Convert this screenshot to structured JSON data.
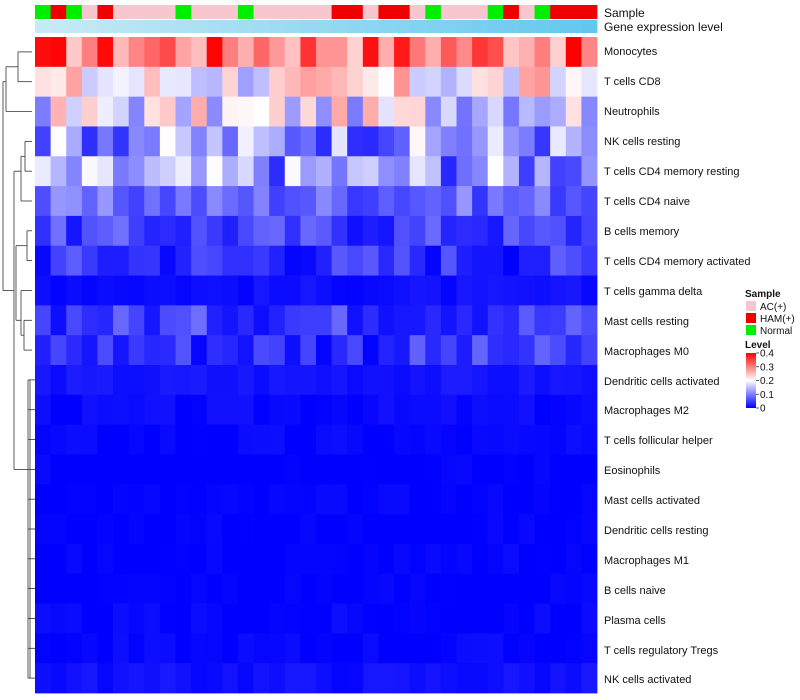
{
  "chart_data": {
    "type": "heatmap",
    "annotation_tracks": [
      {
        "label": "Sample"
      },
      {
        "label": "Gene expression level"
      }
    ],
    "sample_groups": [
      "Normal",
      "HAM(+)",
      "Normal",
      "AC(+)",
      "HAM(+)",
      "AC(+)",
      "AC(+)",
      "AC(+)",
      "AC(+)",
      "Normal",
      "AC(+)",
      "AC(+)",
      "AC(+)",
      "Normal",
      "AC(+)",
      "AC(+)",
      "AC(+)",
      "AC(+)",
      "AC(+)",
      "HAM(+)",
      "HAM(+)",
      "AC(+)",
      "HAM(+)",
      "HAM(+)",
      "AC(+)",
      "Normal",
      "AC(+)",
      "AC(+)",
      "AC(+)",
      "Normal",
      "HAM(+)",
      "AC(+)",
      "Normal",
      "HAM(+)",
      "HAM(+)",
      "HAM(+)"
    ],
    "rows": [
      "Monocytes",
      "T cells CD8",
      "Neutrophils",
      "NK cells resting",
      "T cells CD4 memory resting",
      "T cells CD4 naive",
      "B cells memory",
      "T cells CD4 memory activated",
      "T cells gamma delta",
      "Mast cells resting",
      "Macrophages M0",
      "Dendritic cells activated",
      "Macrophages M2",
      "T cells follicular helper",
      "Eosinophils",
      "Mast cells activated",
      "Dendritic cells resting",
      "Macrophages M1",
      "B cells naive",
      "Plasma cells",
      "T cells regulatory  Tregs",
      "NK cells activated"
    ],
    "row_means": [
      0.32,
      0.2,
      0.18,
      0.12,
      0.12,
      0.08,
      0.05,
      0.04,
      0.01,
      0.05,
      0.04,
      0.015,
      0.006,
      0.003,
      0.0,
      0.0,
      0.0,
      0.0,
      0.0,
      0.002,
      0.003,
      0.012
    ],
    "legend": {
      "sample": {
        "title": "Sample",
        "entries": [
          {
            "label": "AC(+)",
            "color": "#f8c6cf"
          },
          {
            "label": "HAM(+)",
            "color": "#ee0000"
          },
          {
            "label": "Normal",
            "color": "#00ee00"
          }
        ]
      },
      "level": {
        "title": "Level",
        "ticks": [
          0.4,
          0.3,
          0.2,
          0.1,
          0
        ],
        "range": [
          0,
          0.4
        ]
      }
    },
    "colors": {
      "low": "#0000ff",
      "mid": "#ffffff",
      "high": "#ff0000",
      "expression_track": "#87ceeb",
      "AC(+)": "#f8c6cf",
      "HAM(+)": "#ee0000",
      "Normal": "#00ee00"
    }
  }
}
